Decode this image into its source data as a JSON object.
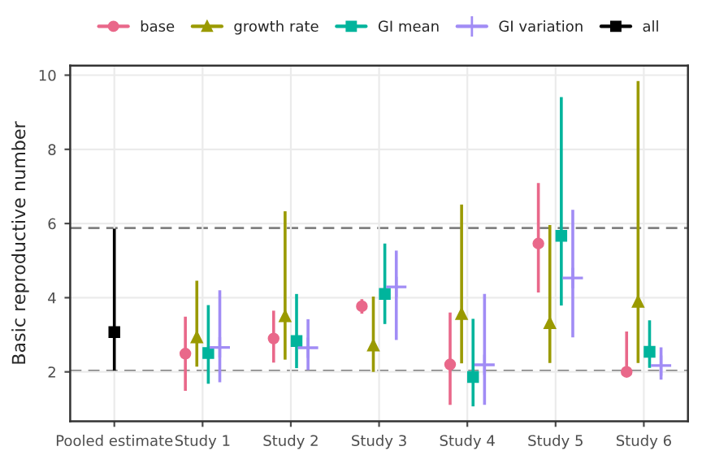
{
  "chart_data": {
    "type": "scatter",
    "ylabel": "Basic reproductive number",
    "categories": [
      "Pooled estimate",
      "Study 1",
      "Study 2",
      "Study 3",
      "Study 4",
      "Study 5",
      "Study 6"
    ],
    "series": [
      {
        "name": "base",
        "color": "#e9688a",
        "marker": "circle",
        "values": [
          null,
          2.49,
          2.9,
          3.77,
          2.2,
          5.46,
          2.0
        ],
        "errors": [
          null,
          [
            1.49,
            3.49
          ],
          [
            2.25,
            3.65
          ],
          [
            3.57,
            3.96
          ],
          [
            1.11,
            3.6
          ],
          [
            4.14,
            7.09
          ],
          [
            2.0,
            3.09
          ]
        ]
      },
      {
        "name": "growth rate",
        "color": "#9a9a00",
        "marker": "triangle",
        "values": [
          null,
          2.93,
          3.5,
          2.71,
          3.56,
          3.31,
          3.89
        ],
        "errors": [
          null,
          [
            2.14,
            4.46
          ],
          [
            2.33,
            6.33
          ],
          [
            2.0,
            4.03
          ],
          [
            2.23,
            6.51
          ],
          [
            2.24,
            5.96
          ],
          [
            2.24,
            9.84
          ]
        ]
      },
      {
        "name": "GI mean",
        "color": "#00b49c",
        "marker": "square",
        "values": [
          null,
          2.51,
          2.83,
          4.1,
          1.86,
          5.67,
          2.54
        ],
        "errors": [
          null,
          [
            1.68,
            3.8
          ],
          [
            2.1,
            4.1
          ],
          [
            3.29,
            5.46
          ],
          [
            1.07,
            3.43
          ],
          [
            3.79,
            9.41
          ],
          [
            2.11,
            3.39
          ]
        ]
      },
      {
        "name": "GI variation",
        "color": "#a18cf5",
        "marker": "cross",
        "values": [
          null,
          2.66,
          2.65,
          4.29,
          2.19,
          4.53,
          2.17
        ],
        "errors": [
          null,
          [
            1.72,
            4.2
          ],
          [
            2.05,
            3.42
          ],
          [
            2.86,
            5.27
          ],
          [
            1.11,
            4.1
          ],
          [
            2.93,
            6.37
          ],
          [
            1.79,
            2.66
          ]
        ]
      },
      {
        "name": "all",
        "color": "#000000",
        "marker": "square",
        "values": [
          3.07,
          null,
          null,
          null,
          null,
          null,
          null
        ],
        "errors": [
          [
            2.03,
            5.86
          ],
          null,
          null,
          null,
          null,
          null,
          null
        ]
      }
    ],
    "ylim": [
      0.67,
      10.26
    ],
    "yticks": [
      2,
      4,
      6,
      8,
      10
    ],
    "grid": true,
    "legend": "top",
    "ref_lines": [
      {
        "axis": "y",
        "value": 5.88,
        "color": "#808080",
        "line_style": "dashed"
      },
      {
        "axis": "y",
        "value": 2.03,
        "color": "#808080",
        "line_style": "dashed"
      }
    ]
  }
}
